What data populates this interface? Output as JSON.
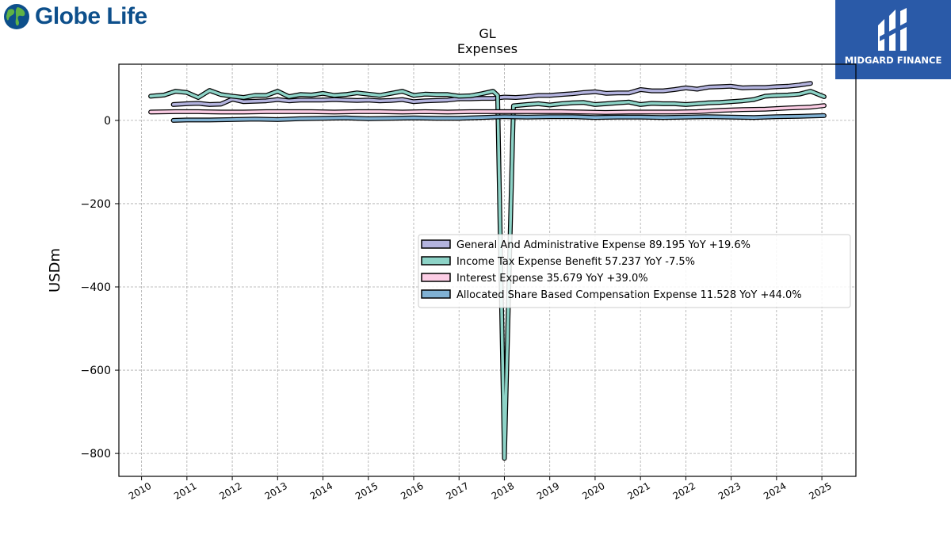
{
  "header": {
    "left_logo_text": "Globe Life",
    "right_logo_text": "MIDGARD FINANCE",
    "title": "GL",
    "subtitle": "Expenses"
  },
  "chart_data": {
    "type": "line",
    "title": "GL",
    "subtitle": "Expenses",
    "xlabel": "",
    "ylabel": "USDm",
    "xlim": [
      2009.5,
      2025.75
    ],
    "ylim": [
      -855,
      135
    ],
    "x_ticks": [
      2010,
      2011,
      2012,
      2013,
      2014,
      2015,
      2016,
      2017,
      2018,
      2019,
      2020,
      2021,
      2022,
      2023,
      2024,
      2025
    ],
    "y_ticks": [
      0,
      -200,
      -400,
      -600,
      -800
    ],
    "y_tick_labels": [
      "0",
      "−200",
      "−400",
      "−600",
      "−800"
    ],
    "grid": true,
    "legend_position": "center-right",
    "series": [
      {
        "name": "General And Administrative Expense  89.195 YoY +19.6%",
        "color": "#b3b3de",
        "x": [
          2010.7,
          2011.0,
          2011.25,
          2011.5,
          2011.75,
          2012.0,
          2012.25,
          2012.5,
          2012.75,
          2013.0,
          2013.25,
          2013.5,
          2013.75,
          2014.0,
          2014.25,
          2014.5,
          2014.75,
          2015.0,
          2015.25,
          2015.5,
          2015.75,
          2016.0,
          2016.25,
          2016.5,
          2016.75,
          2017.0,
          2017.25,
          2017.5,
          2017.75,
          2018.0,
          2018.25,
          2018.5,
          2018.75,
          2019.0,
          2019.25,
          2019.5,
          2019.75,
          2020.0,
          2020.25,
          2020.5,
          2020.75,
          2021.0,
          2021.25,
          2021.5,
          2021.75,
          2022.0,
          2022.25,
          2022.5,
          2022.75,
          2023.0,
          2023.25,
          2023.5,
          2023.75,
          2024.0,
          2024.25,
          2024.5,
          2024.75
        ],
        "y": [
          38,
          40,
          41,
          38,
          39,
          51,
          45,
          46,
          47,
          50,
          47,
          49,
          49,
          49,
          50,
          49,
          48,
          49,
          47,
          48,
          50,
          45,
          47,
          48,
          49,
          52,
          52,
          53,
          53,
          56,
          55,
          57,
          60,
          60,
          62,
          64,
          67,
          69,
          65,
          66,
          66,
          74,
          71,
          71,
          74,
          78,
          75,
          80,
          81,
          82,
          78,
          79,
          79,
          81,
          82,
          85,
          89
        ]
      },
      {
        "name": "Income Tax Expense Benefit  57.237 YoY -7.5%",
        "color": "#8dd3c7",
        "x": [
          2010.2,
          2010.5,
          2010.75,
          2011.0,
          2011.25,
          2011.5,
          2011.75,
          2012.0,
          2012.25,
          2012.5,
          2012.75,
          2013.0,
          2013.25,
          2013.5,
          2013.75,
          2014.0,
          2014.25,
          2014.5,
          2014.75,
          2015.0,
          2015.25,
          2015.5,
          2015.75,
          2016.0,
          2016.25,
          2016.5,
          2016.75,
          2017.0,
          2017.25,
          2017.5,
          2017.75,
          2017.85,
          2018.0,
          2018.2,
          2018.5,
          2018.75,
          2019.0,
          2019.25,
          2019.5,
          2019.75,
          2020.0,
          2020.25,
          2020.5,
          2020.75,
          2021.0,
          2021.25,
          2021.5,
          2021.75,
          2022.0,
          2022.25,
          2022.5,
          2022.75,
          2023.0,
          2023.25,
          2023.5,
          2023.75,
          2024.0,
          2024.25,
          2024.5,
          2024.75,
          2025.05
        ],
        "y": [
          58,
          61,
          70,
          67,
          55,
          72,
          62,
          58,
          55,
          60,
          60,
          70,
          57,
          62,
          61,
          65,
          60,
          62,
          66,
          63,
          60,
          65,
          70,
          60,
          63,
          62,
          62,
          58,
          59,
          64,
          70,
          60,
          -812,
          35,
          38,
          40,
          37,
          40,
          42,
          43,
          38,
          40,
          42,
          44,
          38,
          41,
          40,
          40,
          38,
          40,
          42,
          43,
          45,
          47,
          50,
          58,
          60,
          61,
          63,
          70,
          57
        ]
      },
      {
        "name": "Interest Expense  35.679 YoY +39.0%",
        "color": "#fccde5",
        "x": [
          2010.2,
          2010.75,
          2011.25,
          2011.75,
          2012.25,
          2012.75,
          2013.25,
          2013.75,
          2014.25,
          2014.75,
          2015.25,
          2015.75,
          2016.25,
          2016.75,
          2017.25,
          2017.75,
          2018.25,
          2018.75,
          2019.25,
          2019.75,
          2020.25,
          2020.75,
          2021.25,
          2021.75,
          2022.25,
          2022.75,
          2023.25,
          2023.75,
          2024.25,
          2024.75,
          2025.05
        ],
        "y": [
          20,
          21,
          21,
          20,
          20,
          21,
          21,
          21,
          20,
          21,
          21,
          20,
          21,
          20,
          21,
          21,
          21,
          21,
          21,
          20,
          19,
          20,
          20,
          20,
          21,
          24,
          26,
          27,
          30,
          32,
          35.7
        ]
      },
      {
        "name": "Allocated Share Based Compensation Expense  11.528 YoY +44.0%",
        "color": "#80b1d3",
        "x": [
          2010.7,
          2011.0,
          2011.5,
          2012.0,
          2012.5,
          2013.0,
          2013.5,
          2014.0,
          2014.5,
          2015.0,
          2015.5,
          2016.0,
          2016.5,
          2017.0,
          2017.5,
          2018.0,
          2018.5,
          2019.0,
          2019.5,
          2020.0,
          2020.5,
          2021.0,
          2021.5,
          2022.0,
          2022.5,
          2023.0,
          2023.5,
          2024.0,
          2024.5,
          2025.05
        ],
        "y": [
          0,
          1,
          1,
          2,
          3,
          2,
          4,
          5,
          6,
          4,
          5,
          6,
          5,
          5,
          7,
          9,
          8,
          9,
          9,
          7,
          8,
          8,
          7,
          8,
          9,
          8,
          7,
          9,
          10,
          11.5
        ]
      }
    ]
  }
}
